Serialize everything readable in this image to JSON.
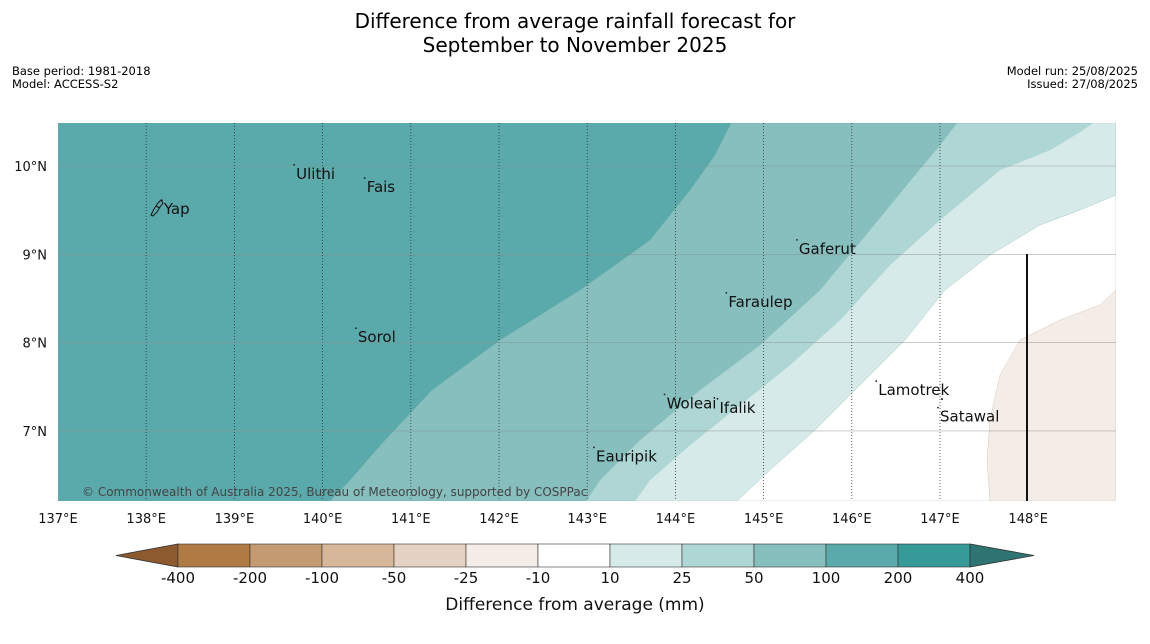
{
  "header": {
    "title_line1": "Difference from average rainfall forecast for",
    "title_line2": "September to November 2025",
    "base_period": "Base period: 1981-2018",
    "model": "Model: ACCESS-S2",
    "model_run": "Model run: 25/08/2025",
    "issued": "Issued: 27/08/2025"
  },
  "map": {
    "lon_range": [
      137,
      149
    ],
    "lat_range": [
      6.2,
      10.5
    ],
    "lon_ticks": [
      "137°E",
      "138°E",
      "139°E",
      "140°E",
      "141°E",
      "142°E",
      "143°E",
      "144°E",
      "145°E",
      "146°E",
      "147°E",
      "148°E"
    ],
    "lat_ticks": [
      "10°N",
      "9°N",
      "8°N",
      "7°N"
    ],
    "places": [
      {
        "name": "Yap",
        "lon": 138.2,
        "lat": 9.5
      },
      {
        "name": "Ulithi",
        "lon": 139.7,
        "lat": 9.9
      },
      {
        "name": "Fais",
        "lon": 140.5,
        "lat": 9.75
      },
      {
        "name": "Gaferut",
        "lon": 145.4,
        "lat": 9.05
      },
      {
        "name": "Faraulep",
        "lon": 144.6,
        "lat": 8.45
      },
      {
        "name": "Sorol",
        "lon": 140.4,
        "lat": 8.05
      },
      {
        "name": "Woleai",
        "lon": 143.9,
        "lat": 7.3
      },
      {
        "name": "Ifalik",
        "lon": 144.5,
        "lat": 7.25
      },
      {
        "name": "Lamotrek",
        "lon": 146.3,
        "lat": 7.45
      },
      {
        "name": "Satawal",
        "lon": 147.0,
        "lat": 7.15
      },
      {
        "name": "Eauripik",
        "lon": 143.1,
        "lat": 6.7
      }
    ],
    "copyright": "© Commonwealth of Australia 2025, Bureau of Meteorology, supported by COSPPac"
  },
  "colorbar": {
    "title": "Difference from average (mm)",
    "tick_labels": [
      "-400",
      "-200",
      "-100",
      "-50",
      "-25",
      "-10",
      "10",
      "25",
      "50",
      "100",
      "200",
      "400"
    ],
    "colors": [
      "#8c5a2e",
      "#b07a45",
      "#c49a72",
      "#d7b799",
      "#e5d2c2",
      "#f4ece7",
      "#ffffff",
      "#d6eae9",
      "#aed6d5",
      "#86bfbe",
      "#5baaab",
      "#359a98",
      "#2e7473"
    ]
  }
}
